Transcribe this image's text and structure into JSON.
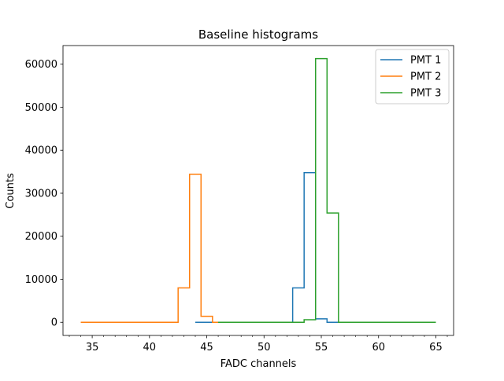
{
  "chart_data": {
    "type": "line",
    "drawstyle": "steps",
    "title": "Baseline histograms",
    "xlabel": "FADC channels",
    "ylabel": "Counts",
    "xlim": [
      32.45,
      66.55
    ],
    "ylim": [
      -3060,
      64330
    ],
    "xticks": [
      35,
      40,
      45,
      50,
      55,
      60,
      65
    ],
    "yticks": [
      0,
      10000,
      20000,
      30000,
      40000,
      50000,
      60000
    ],
    "x_minor_step": 1,
    "grid": false,
    "legend": {
      "placement": "top-right"
    },
    "series": [
      {
        "name": "PMT 1",
        "color": "#1f77b4",
        "x": [
          44,
          45,
          46,
          47,
          48,
          49,
          50,
          51,
          52,
          53,
          54,
          55,
          56,
          57,
          58,
          59,
          60,
          61,
          62,
          63,
          64,
          65
        ],
        "y": [
          0,
          0,
          0,
          0,
          0,
          0,
          0,
          0,
          0,
          8000,
          34800,
          800,
          0,
          0,
          0,
          0,
          0,
          0,
          0,
          0,
          0,
          0
        ]
      },
      {
        "name": "PMT 2",
        "color": "#ff7f0e",
        "x": [
          34,
          35,
          36,
          37,
          38,
          39,
          40,
          41,
          42,
          43,
          44,
          45,
          46
        ],
        "y": [
          0,
          0,
          0,
          0,
          0,
          0,
          0,
          0,
          0,
          8000,
          34400,
          1400,
          0
        ]
      },
      {
        "name": "PMT 3",
        "color": "#2ca02c",
        "x": [
          46,
          47,
          48,
          49,
          50,
          51,
          52,
          53,
          54,
          55,
          56,
          57,
          58,
          59,
          60,
          61,
          62,
          63,
          64,
          65
        ],
        "y": [
          0,
          0,
          0,
          0,
          0,
          0,
          0,
          0,
          600,
          61300,
          25400,
          0,
          0,
          0,
          0,
          0,
          0,
          0,
          0,
          0
        ]
      }
    ]
  }
}
